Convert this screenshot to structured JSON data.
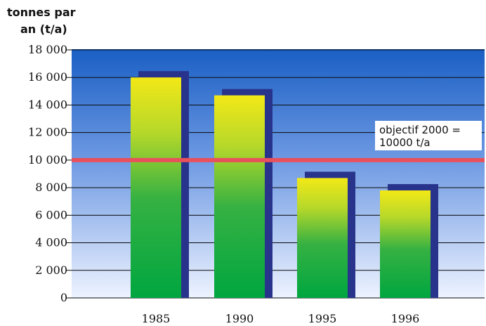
{
  "chart_data": {
    "type": "bar",
    "title": "",
    "xlabel": "",
    "ylabel": "tonnes par an (t/a)",
    "ylabel_lines": [
      "tonnes par",
      "an (t/a)"
    ],
    "categories": [
      "1985",
      "1990",
      "1995",
      "1996"
    ],
    "values": [
      16000,
      14700,
      8700,
      7800
    ],
    "y_ticks": [
      0,
      2000,
      4000,
      6000,
      8000,
      10000,
      12000,
      14000,
      16000,
      18000
    ],
    "y_tick_labels": [
      "0",
      "2 000",
      "4 000",
      "6 000",
      "8 000",
      "10 000",
      "12 000",
      "14 000",
      "16 000",
      "18 000"
    ],
    "ylim": [
      0,
      18000
    ],
    "grid": true,
    "legend": "none",
    "target_line": {
      "value": 10000,
      "label_lines": [
        "objectif 2000 =",
        "10000 t/a"
      ],
      "color": "#e8515b"
    },
    "colors": {
      "bar_top": "#f2e817",
      "bar_bottom": "#00a640",
      "bar_shadow": "#28348c",
      "background_top": "#1a5fc4",
      "background_bottom": "#eef3ff"
    }
  }
}
